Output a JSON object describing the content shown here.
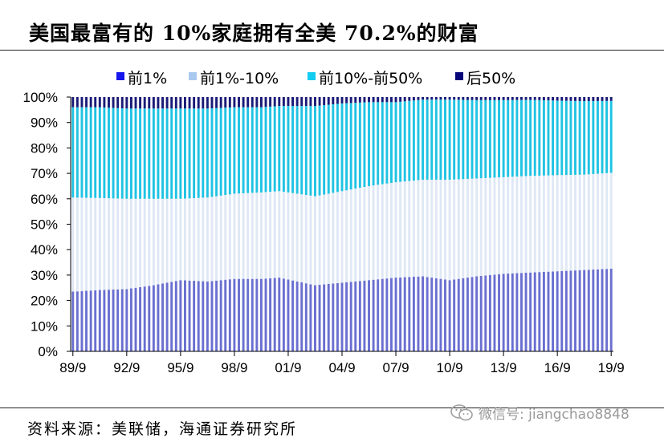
{
  "page": {
    "title": "美国最富有的 10%家庭拥有全美 70.2%的财富",
    "source": "资料来源：美联储，海通证券研究所",
    "watermark": "微信号: jiangchao8848"
  },
  "colors": {
    "top1": "#6a6fd0",
    "top1_10": "#dfe8f5",
    "top10_50": "#1fc3e3",
    "bottom50": "#1a1a78",
    "legend_top1": "#1515ee",
    "legend_top1_10": "#a9c9ee",
    "legend_top10_50": "#12cdf0",
    "legend_bottom50": "#06067a"
  },
  "chart_data": {
    "type": "bar",
    "stacked": true,
    "title": "美国最富有的 10%家庭拥有全美 70.2%的财富",
    "xlabel": "",
    "ylabel": "",
    "ylim": [
      0,
      100
    ],
    "y_ticks": [
      "0%",
      "10%",
      "20%",
      "30%",
      "40%",
      "50%",
      "60%",
      "70%",
      "80%",
      "90%",
      "100%"
    ],
    "x_ticks": [
      "89/9",
      "92/9",
      "95/9",
      "98/9",
      "01/9",
      "04/9",
      "07/9",
      "10/9",
      "13/9",
      "16/9",
      "19/9"
    ],
    "x_tick_indices": [
      0,
      12,
      24,
      36,
      48,
      60,
      72,
      84,
      96,
      108,
      120
    ],
    "legend": [
      "前1%",
      "前1%-10%",
      "前10%-前50%",
      "后50%"
    ],
    "legend_position": "top",
    "quarters_start": "1989Q3",
    "quarters_end": "2019Q3",
    "series": [
      {
        "name": "前1%",
        "anchors": [
          [
            0,
            23.5
          ],
          [
            6,
            24
          ],
          [
            12,
            24.5
          ],
          [
            18,
            26
          ],
          [
            24,
            28
          ],
          [
            30,
            27.5
          ],
          [
            36,
            28.5
          ],
          [
            42,
            28.5
          ],
          [
            46,
            29
          ],
          [
            54,
            26
          ],
          [
            60,
            27
          ],
          [
            66,
            28
          ],
          [
            72,
            29
          ],
          [
            78,
            29.5
          ],
          [
            84,
            28
          ],
          [
            90,
            29.5
          ],
          [
            96,
            30.5
          ],
          [
            102,
            31
          ],
          [
            108,
            31.5
          ],
          [
            114,
            32
          ],
          [
            120,
            32.5
          ]
        ]
      },
      {
        "name": "前1%-10%",
        "anchors": [
          [
            0,
            37
          ],
          [
            6,
            36
          ],
          [
            12,
            35.5
          ],
          [
            18,
            34
          ],
          [
            24,
            32
          ],
          [
            30,
            33
          ],
          [
            36,
            33.5
          ],
          [
            42,
            34
          ],
          [
            46,
            34
          ],
          [
            54,
            35
          ],
          [
            60,
            36
          ],
          [
            66,
            37
          ],
          [
            72,
            37.5
          ],
          [
            78,
            38
          ],
          [
            84,
            39.5
          ],
          [
            90,
            38.5
          ],
          [
            96,
            38
          ],
          [
            102,
            38
          ],
          [
            108,
            37.8
          ],
          [
            114,
            37.5
          ],
          [
            120,
            37.7
          ]
        ]
      },
      {
        "name": "前10%-前50%",
        "anchors": [
          [
            0,
            35.5
          ],
          [
            6,
            35.5
          ],
          [
            12,
            35.5
          ],
          [
            18,
            35.5
          ],
          [
            24,
            35.5
          ],
          [
            30,
            35
          ],
          [
            36,
            34
          ],
          [
            42,
            33.5
          ],
          [
            46,
            33.5
          ],
          [
            54,
            35.5
          ],
          [
            60,
            34.5
          ],
          [
            66,
            33
          ],
          [
            72,
            31.5
          ],
          [
            78,
            31.5
          ],
          [
            84,
            31.5
          ],
          [
            90,
            30.8
          ],
          [
            96,
            30.3
          ],
          [
            102,
            29.9
          ],
          [
            108,
            29.3
          ],
          [
            114,
            28.9
          ],
          [
            120,
            28.3
          ]
        ]
      },
      {
        "name": "后50%",
        "anchors": [
          [
            0,
            4
          ],
          [
            6,
            4
          ],
          [
            12,
            4.5
          ],
          [
            18,
            4.5
          ],
          [
            24,
            4.5
          ],
          [
            30,
            4.5
          ],
          [
            36,
            4
          ],
          [
            42,
            4
          ],
          [
            46,
            3.5
          ],
          [
            54,
            3.5
          ],
          [
            60,
            2.5
          ],
          [
            66,
            2
          ],
          [
            72,
            2
          ],
          [
            78,
            1
          ],
          [
            84,
            1
          ],
          [
            90,
            1.2
          ],
          [
            96,
            1.2
          ],
          [
            102,
            1.1
          ],
          [
            108,
            1.4
          ],
          [
            114,
            1.6
          ],
          [
            120,
            1.5
          ]
        ]
      }
    ]
  }
}
